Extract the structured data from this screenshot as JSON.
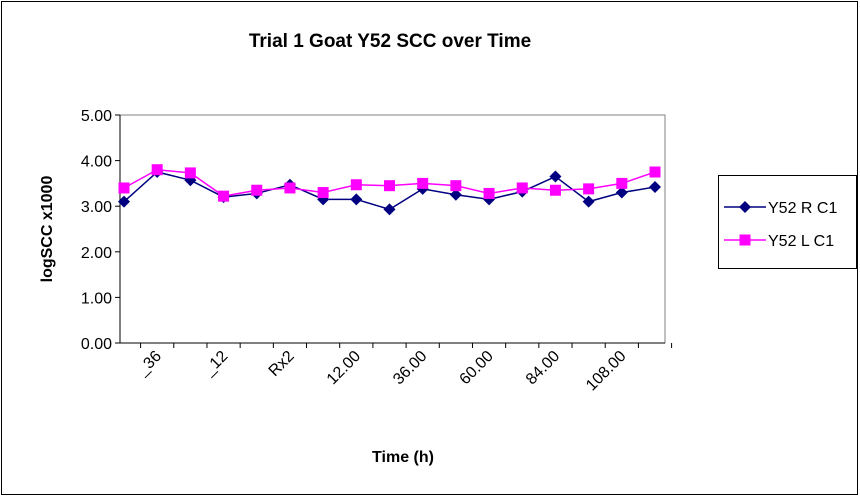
{
  "chart_data": {
    "type": "line",
    "title": "Trial 1 Goat Y52 SCC over Time",
    "x_label": "Time (h)",
    "y_label": "logSCC x1000",
    "categories": [
      null,
      "_36",
      null,
      "_12",
      null,
      "Rx2",
      null,
      "12.00",
      null,
      "36.00",
      null,
      "60.00",
      null,
      "84.00",
      null,
      "108.00",
      null
    ],
    "series": [
      {
        "name": "Y52 R C1",
        "color": "#000080",
        "marker": "diamond",
        "values": [
          3.1,
          3.75,
          3.57,
          3.2,
          3.28,
          3.47,
          3.15,
          3.15,
          2.93,
          3.38,
          3.25,
          3.15,
          3.32,
          3.65,
          3.1,
          3.3,
          3.42
        ]
      },
      {
        "name": "Y52 L C1",
        "color": "#ff00ff",
        "marker": "square",
        "values": [
          3.4,
          3.8,
          3.73,
          3.22,
          3.35,
          3.4,
          3.3,
          3.47,
          3.45,
          3.5,
          3.45,
          3.28,
          3.4,
          3.35,
          3.38,
          3.5,
          3.75
        ]
      }
    ],
    "ylim": [
      0,
      5
    ],
    "yticks": [
      {
        "value": 0,
        "label": "0.00"
      },
      {
        "value": 1,
        "label": "1.00"
      },
      {
        "value": 2,
        "label": "2.00"
      },
      {
        "value": 3,
        "label": "3.00"
      },
      {
        "value": 4,
        "label": "4.00"
      },
      {
        "value": 5,
        "label": "5.00"
      }
    ],
    "legend": "right",
    "grid": false
  }
}
